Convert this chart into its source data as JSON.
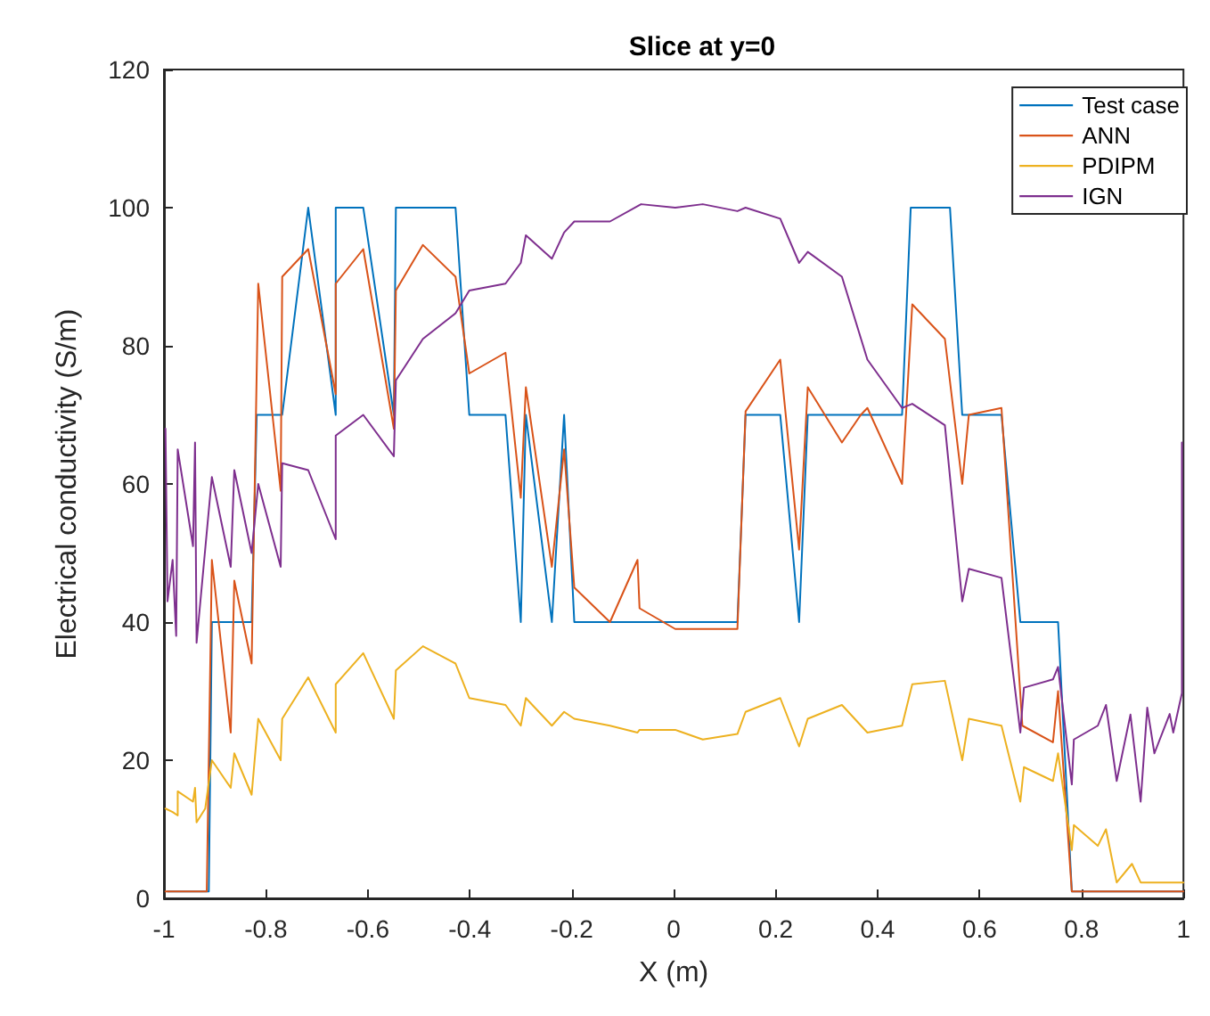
{
  "chart_data": {
    "type": "line",
    "title": "Slice at y=0",
    "xlabel": "X (m)",
    "ylabel": "Electrical conductivity (S/m)",
    "xlim": [
      -1,
      1
    ],
    "xticks": [
      -1,
      -0.8,
      -0.6,
      -0.4,
      -0.2,
      0,
      0.2,
      0.4,
      0.6,
      0.8,
      1
    ],
    "ylim": [
      0,
      120
    ],
    "yticks": [
      0,
      20,
      40,
      60,
      80,
      100,
      120
    ],
    "grid": false,
    "legend": "top right",
    "marker": "none",
    "line_style": "solid",
    "series": [
      {
        "name": "Test case",
        "color": "#0072bd",
        "x": [
          -0.993,
          -0.912,
          -0.906,
          -0.828,
          -0.818,
          -0.768,
          -0.717,
          -0.663,
          -0.663,
          -0.609,
          -0.549,
          -0.545,
          -0.428,
          -0.401,
          -0.33,
          -0.3,
          -0.29,
          -0.239,
          -0.215,
          -0.195,
          0.125,
          0.141,
          0.209,
          0.246,
          0.263,
          0.448,
          0.465,
          0.542,
          0.566,
          0.643,
          0.68,
          0.754,
          0.781,
          1
        ],
        "values": [
          1,
          1,
          40,
          40,
          70,
          70,
          100,
          70,
          100,
          100,
          70,
          100,
          100,
          70,
          70,
          40,
          70,
          40,
          70,
          40,
          40,
          70,
          70,
          40,
          70,
          70,
          100,
          100,
          70,
          70,
          40,
          40,
          1,
          1
        ]
      },
      {
        "name": "ANN",
        "color": "#d95319",
        "x": [
          -0.997,
          -0.916,
          -0.906,
          -0.869,
          -0.862,
          -0.828,
          -0.815,
          -0.771,
          -0.768,
          -0.717,
          -0.663,
          -0.663,
          -0.609,
          -0.549,
          -0.545,
          -0.492,
          -0.428,
          -0.401,
          -0.33,
          -0.3,
          -0.29,
          -0.239,
          -0.215,
          -0.195,
          -0.125,
          -0.071,
          -0.067,
          0.003,
          0.057,
          0.125,
          0.141,
          0.209,
          0.246,
          0.263,
          0.33,
          0.367,
          0.38,
          0.448,
          0.468,
          0.532,
          0.566,
          0.579,
          0.643,
          0.684,
          0.744,
          0.754,
          0.781,
          1
        ],
        "values": [
          1,
          1,
          49,
          24,
          46,
          34,
          89,
          59,
          90,
          94,
          73,
          89,
          94,
          68,
          88,
          94.6,
          90,
          76,
          79,
          58,
          74,
          48,
          65,
          45,
          40,
          49,
          42,
          39,
          39,
          39,
          70.5,
          78,
          50.5,
          74,
          66,
          70,
          71,
          60,
          86,
          81,
          60,
          70,
          71,
          25,
          22.6,
          30,
          1,
          1
        ]
      },
      {
        "name": "PDIPM",
        "color": "#edb120",
        "x": [
          -0.997,
          -0.983,
          -0.973,
          -0.973,
          -0.943,
          -0.939,
          -0.936,
          -0.919,
          -0.906,
          -0.869,
          -0.862,
          -0.828,
          -0.815,
          -0.771,
          -0.768,
          -0.717,
          -0.663,
          -0.663,
          -0.609,
          -0.549,
          -0.545,
          -0.492,
          -0.428,
          -0.401,
          -0.33,
          -0.3,
          -0.29,
          -0.239,
          -0.215,
          -0.195,
          -0.125,
          -0.071,
          -0.067,
          0.003,
          0.057,
          0.125,
          0.141,
          0.209,
          0.246,
          0.263,
          0.33,
          0.38,
          0.448,
          0.468,
          0.532,
          0.566,
          0.579,
          0.643,
          0.68,
          0.687,
          0.744,
          0.754,
          0.781,
          0.785,
          0.832,
          0.848,
          0.869,
          0.899,
          0.916,
          1
        ],
        "values": [
          13,
          12.5,
          12,
          15.5,
          14,
          16,
          11,
          13,
          20,
          16,
          21,
          15,
          26,
          20,
          26,
          32,
          24,
          31,
          35.5,
          26,
          33,
          36.5,
          34,
          29,
          28,
          25,
          29,
          25,
          27,
          26,
          25,
          24,
          24.4,
          24.4,
          23,
          23.8,
          27,
          29,
          22,
          26,
          28,
          24,
          25,
          31,
          31.5,
          20,
          26,
          25,
          14,
          19,
          17,
          21,
          7,
          10.6,
          7.6,
          10,
          2.3,
          5,
          2.3,
          2.3
        ]
      },
      {
        "name": "IGN",
        "color": "#7e2f8e",
        "x": [
          -0.997,
          -0.993,
          -0.983,
          -0.976,
          -0.973,
          -0.943,
          -0.939,
          -0.936,
          -0.906,
          -0.869,
          -0.862,
          -0.828,
          -0.815,
          -0.771,
          -0.768,
          -0.717,
          -0.663,
          -0.663,
          -0.609,
          -0.549,
          -0.545,
          -0.492,
          -0.428,
          -0.401,
          -0.33,
          -0.3,
          -0.29,
          -0.239,
          -0.215,
          -0.195,
          -0.125,
          -0.064,
          0.003,
          0.057,
          0.125,
          0.141,
          0.209,
          0.246,
          0.263,
          0.33,
          0.38,
          0.448,
          0.468,
          0.532,
          0.566,
          0.579,
          0.643,
          0.68,
          0.687,
          0.744,
          0.754,
          0.781,
          0.785,
          0.832,
          0.848,
          0.869,
          0.896,
          0.916,
          0.929,
          0.943,
          0.973,
          0.98,
          0.997,
          0.997
        ],
        "values": [
          68,
          43,
          49,
          38,
          65,
          51,
          66,
          37,
          61,
          48,
          62,
          50,
          60,
          48,
          63,
          62,
          52,
          67,
          70,
          64,
          75,
          81,
          84.7,
          88,
          89,
          92,
          96,
          92.6,
          96.4,
          98,
          98,
          100.5,
          100,
          100.5,
          99.5,
          100,
          98.4,
          92,
          93.6,
          90,
          78,
          71,
          71.6,
          68.5,
          43,
          47.7,
          46.4,
          24,
          30.5,
          31.7,
          33.5,
          16.5,
          23,
          25,
          28,
          17,
          26.6,
          14,
          27.6,
          21,
          26.7,
          24,
          29.7,
          66
        ]
      }
    ]
  }
}
